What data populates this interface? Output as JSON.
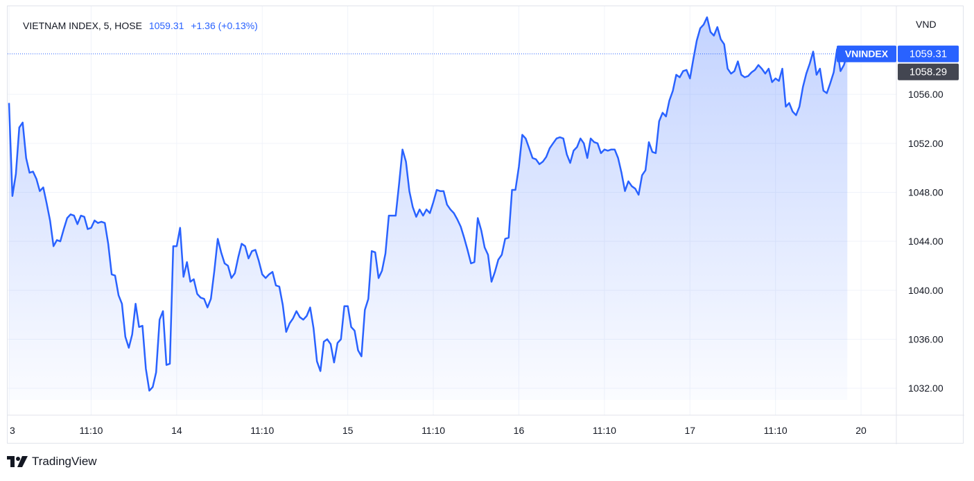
{
  "legend": {
    "symbol": "VIETNAM INDEX, 5, HOSE",
    "last": "1059.31",
    "change": "+1.36 (+0.13%)"
  },
  "currency": "VND",
  "brand": {
    "name": "TradingView",
    "logo_icon": "tradingview-logo-icon"
  },
  "colors": {
    "line": "#2962ff",
    "fill": "#2962ff",
    "grid": "#f0f3fa",
    "price_label": "#2962ff",
    "prev_label": "#434651"
  },
  "chart_data": {
    "type": "area",
    "ylim": [
      1029.8,
      1063.2
    ],
    "yticks": [
      "1032.00",
      "1036.00",
      "1040.00",
      "1044.00",
      "1048.00",
      "1052.00",
      "1056.00"
    ],
    "ytick_values": [
      1032,
      1036,
      1040,
      1044,
      1048,
      1052,
      1056
    ],
    "x_labels": [
      "3",
      "11:10",
      "14",
      "11:10",
      "15",
      "11:10",
      "16",
      "11:10",
      "17",
      "11:10",
      "20"
    ],
    "x_label_index": [
      0,
      24,
      49,
      74,
      99,
      124,
      149,
      174,
      199,
      224,
      249
    ],
    "grid": true,
    "price_labels": [
      {
        "name": "VNINDEX",
        "value": "1059.31",
        "y": 1059.31
      },
      {
        "name": "",
        "value": "1058.29",
        "y": 1058.29
      }
    ],
    "series": [
      {
        "values": [
          1055.3,
          1047.7,
          1049.5,
          1053.3,
          1053.7,
          1050.8,
          1049.6,
          1049.7,
          1049.1,
          1048.1,
          1048.4,
          1047.1,
          1045.7,
          1043.6,
          1044.1,
          1044.0,
          1045.0,
          1045.9,
          1046.2,
          1046.1,
          1045.4,
          1046.1,
          1046.0,
          1045.0,
          1045.1,
          1045.7,
          1045.5,
          1045.6,
          1045.5,
          1043.8,
          1041.3,
          1041.2,
          1039.6,
          1038.9,
          1036.2,
          1035.3,
          1036.4,
          1038.9,
          1037.0,
          1037.1,
          1033.6,
          1031.8,
          1032.1,
          1033.3,
          1037.6,
          1038.3,
          1033.9,
          1034.0,
          1043.6,
          1043.6,
          1045.1,
          1041.1,
          1042.3,
          1040.7,
          1040.9,
          1039.7,
          1039.4,
          1039.3,
          1038.6,
          1039.3,
          1041.6,
          1044.2,
          1043.1,
          1042.2,
          1042.0,
          1041.0,
          1041.4,
          1042.7,
          1043.8,
          1043.6,
          1042.6,
          1043.2,
          1043.3,
          1042.4,
          1041.3,
          1041.0,
          1041.3,
          1041.5,
          1040.4,
          1040.3,
          1038.8,
          1036.6,
          1037.3,
          1037.7,
          1038.3,
          1037.8,
          1037.6,
          1037.9,
          1038.6,
          1036.9,
          1034.2,
          1033.4,
          1035.8,
          1036.0,
          1035.6,
          1034.1,
          1035.7,
          1036.0,
          1038.7,
          1038.7,
          1037.0,
          1036.7,
          1035.1,
          1034.6,
          1038.4,
          1039.3,
          1043.2,
          1043.1,
          1041.0,
          1041.6,
          1043.0,
          1046.1,
          1046.1,
          1046.1,
          1048.7,
          1051.5,
          1050.5,
          1048.1,
          1046.8,
          1046.0,
          1046.6,
          1046.1,
          1046.6,
          1046.3,
          1047.2,
          1048.2,
          1048.1,
          1048.1,
          1047.0,
          1046.6,
          1046.3,
          1045.8,
          1045.2,
          1044.3,
          1043.3,
          1042.2,
          1042.3,
          1045.9,
          1044.9,
          1043.5,
          1042.9,
          1040.7,
          1041.5,
          1042.5,
          1042.9,
          1044.2,
          1044.3,
          1048.2,
          1048.2,
          1050.1,
          1052.7,
          1052.4,
          1051.6,
          1050.8,
          1050.7,
          1050.3,
          1050.5,
          1050.9,
          1051.6,
          1052.0,
          1052.4,
          1052.5,
          1052.4,
          1051.1,
          1050.4,
          1051.4,
          1051.7,
          1052.4,
          1052.0,
          1050.8,
          1052.4,
          1052.1,
          1052.0,
          1051.2,
          1051.5,
          1051.4,
          1051.5,
          1051.5,
          1050.8,
          1049.6,
          1048.1,
          1048.9,
          1048.5,
          1048.3,
          1047.8,
          1049.4,
          1049.8,
          1052.1,
          1051.3,
          1051.2,
          1053.8,
          1054.5,
          1054.2,
          1055.5,
          1056.3,
          1057.6,
          1057.4,
          1057.9,
          1058.0,
          1057.3,
          1058.9,
          1060.4,
          1061.4,
          1061.7,
          1062.3,
          1061.1,
          1060.8,
          1061.5,
          1060.5,
          1060.1,
          1058.1,
          1057.7,
          1057.9,
          1058.7,
          1057.6,
          1057.4,
          1057.5,
          1057.8,
          1058.0,
          1058.4,
          1058.1,
          1057.7,
          1058.1,
          1057.0,
          1057.3,
          1057.1,
          1058.1,
          1055.0,
          1055.3,
          1054.6,
          1054.3,
          1055.0,
          1056.6,
          1057.7,
          1058.5,
          1059.5,
          1057.6,
          1058.1,
          1056.3,
          1056.1,
          1056.9,
          1057.8,
          1059.7,
          1057.9,
          1058.4,
          1059.31
        ]
      }
    ]
  }
}
